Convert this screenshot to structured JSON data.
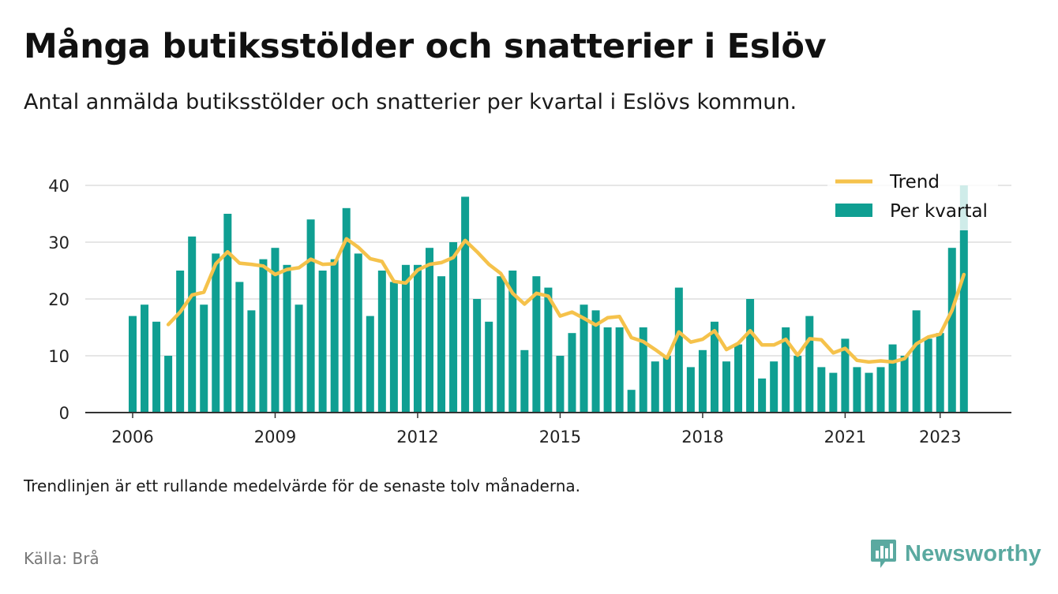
{
  "header": {
    "title": "Många butiksstölder och snatterier i Eslöv",
    "subtitle": "Antal anmälda butiksstölder och snatterier per kvartal i Eslövs kommun."
  },
  "footer": {
    "note": "Trendlinjen är ett rullande medelvärde för de senaste tolv månaderna.",
    "source": "Källa: Brå",
    "brand": "Newsworthy",
    "brand_icon": "bar-chart-speech-bubble-icon"
  },
  "colors": {
    "bar": "#0f9f92",
    "trend": "#f5c24b",
    "grid": "#dddddd",
    "axis": "#333333",
    "brand": "#5aa9a0"
  },
  "chart_data": {
    "type": "bar",
    "ylim": [
      0,
      40
    ],
    "yticks": [
      0,
      10,
      20,
      30,
      40
    ],
    "xticks": [
      "2006",
      "2009",
      "2012",
      "2015",
      "2018",
      "2021",
      "2023"
    ],
    "legend": {
      "position": "top-right",
      "entries": [
        "Trend",
        "Per kvartal"
      ]
    },
    "grid": true,
    "x_start": "2006 Q1",
    "series": [
      {
        "name": "Per kvartal",
        "kind": "bar",
        "values": [
          17,
          19,
          16,
          10,
          25,
          31,
          19,
          28,
          35,
          23,
          18,
          27,
          29,
          26,
          19,
          34,
          25,
          27,
          36,
          28,
          17,
          25,
          23,
          26,
          26,
          29,
          24,
          30,
          38,
          20,
          16,
          24,
          25,
          11,
          24,
          22,
          10,
          14,
          19,
          18,
          15,
          15,
          4,
          15,
          9,
          10,
          22,
          8,
          11,
          16,
          9,
          12,
          20,
          6,
          9,
          15,
          10,
          17,
          8,
          7,
          13,
          8,
          7,
          8,
          12,
          10,
          18,
          13,
          14,
          29,
          40
        ]
      },
      {
        "name": "Trend",
        "kind": "line",
        "start_index": 3,
        "values": [
          15.5,
          17.7,
          20.7,
          21.2,
          26.2,
          28.3,
          26.3,
          26.1,
          25.8,
          24.3,
          25.2,
          25.5,
          27.0,
          26.1,
          26.2,
          30.6,
          29.1,
          27.1,
          26.6,
          23.1,
          22.8,
          25.1,
          26.1,
          26.4,
          27.3,
          30.3,
          28.3,
          26.1,
          24.5,
          21.0,
          19.1,
          21.0,
          20.5,
          17.0,
          17.7,
          16.6,
          15.4,
          16.7,
          16.9,
          13.2,
          12.5,
          11.1,
          9.6,
          14.2,
          12.4,
          12.9,
          14.4,
          11.1,
          12.2,
          14.4,
          11.9,
          11.9,
          12.9,
          10.1,
          13.0,
          12.8,
          10.5,
          11.3,
          9.2,
          8.9,
          9.1,
          8.9,
          9.5,
          12.1,
          13.3,
          13.8,
          18.0,
          24.3
        ]
      }
    ]
  }
}
